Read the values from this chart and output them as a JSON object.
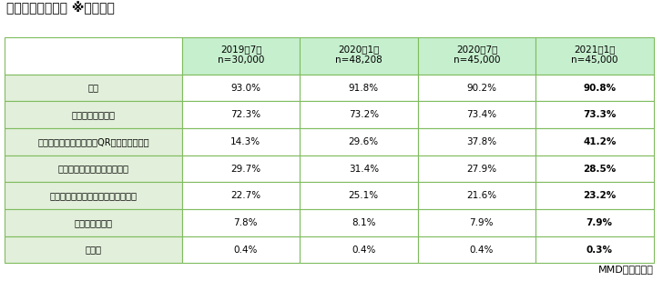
{
  "title": "普段の支払い方法 ※年別比較",
  "columns": [
    "2019年7月\nn=30,000",
    "2020年1月\nn=48,208",
    "2020年7月\nn=45,000",
    "2021年1月\nn=45,000"
  ],
  "rows": [
    "現金",
    "クレジットカード",
    "スマホ決済（タッチ式、QRコード式含む）",
    "カード型の交通系電子マネー",
    "カード型の交通系以外の電子マネー",
    "デビットカード",
    "その他"
  ],
  "data": [
    [
      "93.0%",
      "91.8%",
      "90.2%",
      "90.8%"
    ],
    [
      "72.3%",
      "73.2%",
      "73.4%",
      "73.3%"
    ],
    [
      "14.3%",
      "29.6%",
      "37.8%",
      "41.2%"
    ],
    [
      "29.7%",
      "31.4%",
      "27.9%",
      "28.5%"
    ],
    [
      "22.7%",
      "25.1%",
      "21.6%",
      "23.2%"
    ],
    [
      "7.8%",
      "8.1%",
      "7.9%",
      "7.9%"
    ],
    [
      "0.4%",
      "0.4%",
      "0.4%",
      "0.3%"
    ]
  ],
  "header_bg": "#c6efce",
  "row_bg": "#e2efda",
  "white_bg": "#ffffff",
  "border_color": "#7fbc5e",
  "title_color": "#000000",
  "text_color": "#000000",
  "bold_last_col": true,
  "source_text": "MMD研究所調べ",
  "col_header_border": "#7fbc5e"
}
